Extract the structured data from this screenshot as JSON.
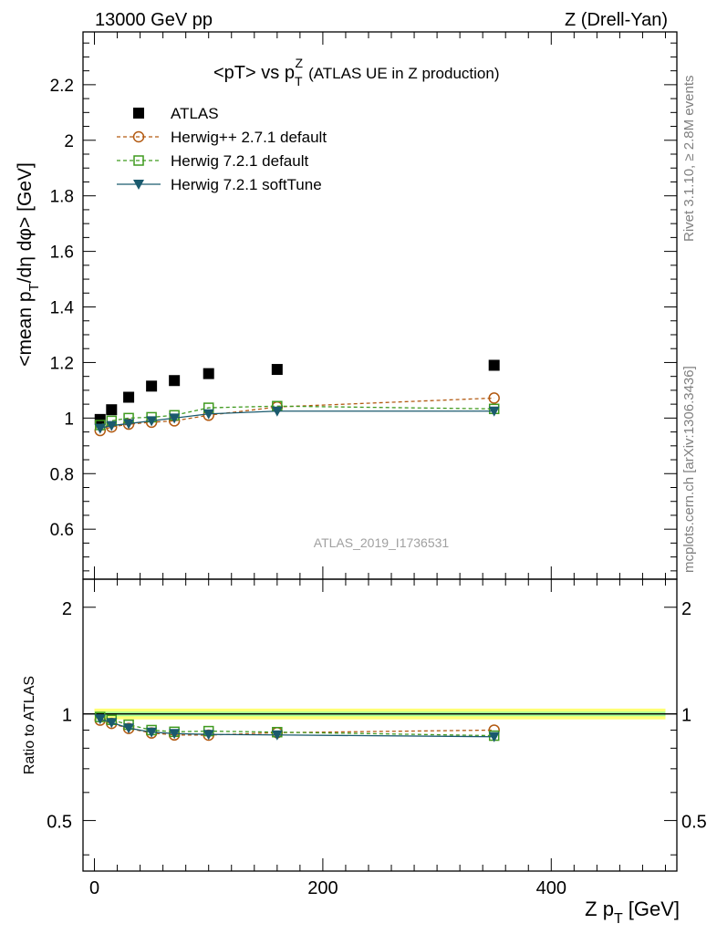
{
  "header": {
    "left": "13000 GeV pp",
    "right": "Z (Drell-Yan)"
  },
  "side_labels": {
    "rivet": "Rivet 3.1.10, ≥ 2.8M events",
    "mcplots": "mcplots.cern.ch [arXiv:1306.3436]"
  },
  "chart_data": [
    {
      "type": "scatter",
      "panel": "main",
      "title": "<pT> vs p_T^Z (ATLAS UE in Z production)",
      "title_parts": {
        "main": "<pT> vs p",
        "sup": "Z",
        "sub": "T",
        "tail": "(ATLAS UE in Z production)"
      },
      "ylabel": "<mean p_T/dη dφ> [GeV]",
      "ylabel_parts": {
        "a": "<mean p",
        "sub": "T",
        "b": "/dη dφ> [GeV]"
      },
      "xlabel": "",
      "xlim": [
        -10,
        510
      ],
      "ylim": [
        0.42,
        2.39
      ],
      "yticks": [
        0.6,
        0.8,
        1,
        1.2,
        1.4,
        1.6,
        1.8,
        2,
        2.2
      ],
      "ytick_labels": [
        "0.6",
        "0.8",
        "1",
        "1.2",
        "1.4",
        "1.6",
        "1.8",
        "2",
        "2.2"
      ],
      "watermark": "ATLAS_2019_I1736531",
      "legend_position": "top-left",
      "series": [
        {
          "name": "ATLAS",
          "color": "#000000",
          "marker": "filled-square",
          "line": "none",
          "x": [
            5,
            15,
            30,
            50,
            70,
            100,
            160,
            350
          ],
          "y": [
            0.995,
            1.03,
            1.075,
            1.115,
            1.135,
            1.16,
            1.175,
            1.19
          ]
        },
        {
          "name": "Herwig++ 2.7.1 default",
          "color": "#b35a12",
          "marker": "open-circle",
          "line": "dashed",
          "x": [
            5,
            15,
            30,
            50,
            70,
            100,
            160,
            350
          ],
          "y": [
            0.955,
            0.968,
            0.978,
            0.985,
            0.99,
            1.01,
            1.04,
            1.072
          ]
        },
        {
          "name": "Herwig 7.2.1 default",
          "color": "#3f9a1f",
          "marker": "open-square",
          "line": "dashed",
          "x": [
            5,
            15,
            30,
            50,
            70,
            100,
            160,
            350
          ],
          "y": [
            0.975,
            0.99,
            1.0,
            1.003,
            1.01,
            1.037,
            1.043,
            1.033
          ]
        },
        {
          "name": "Herwig 7.2.1 softTune",
          "color": "#1a5a6e",
          "marker": "filled-triangle-down",
          "line": "solid",
          "x": [
            5,
            15,
            30,
            50,
            70,
            100,
            160,
            350
          ],
          "y": [
            0.963,
            0.973,
            0.98,
            0.99,
            1.0,
            1.015,
            1.025,
            1.025
          ]
        }
      ]
    },
    {
      "type": "scatter",
      "panel": "ratio",
      "ylabel": "Ratio to ATLAS",
      "xlabel": "Z p_T [GeV]",
      "xlabel_parts": {
        "a": "Z p",
        "sub": "T",
        "b": "[GeV]"
      },
      "xlim": [
        -10,
        510
      ],
      "ylim": [
        0.36,
        2.4
      ],
      "log_y": true,
      "xticks": [
        0,
        200,
        400
      ],
      "xtick_labels": [
        "0",
        "200",
        "400"
      ],
      "yticks": [
        0.5,
        1,
        2
      ],
      "ytick_labels": [
        "0.5",
        "1",
        "2"
      ],
      "band_color": "#ffff66",
      "band_inner_color": "#99ff99",
      "reference_line_color": "#000000",
      "series": [
        {
          "name": "Herwig++ 2.7.1 default",
          "color": "#b35a12",
          "marker": "open-circle",
          "line": "dashed",
          "x": [
            5,
            15,
            30,
            50,
            70,
            100,
            160,
            350
          ],
          "y": [
            0.96,
            0.94,
            0.91,
            0.883,
            0.872,
            0.871,
            0.885,
            0.9
          ]
        },
        {
          "name": "Herwig 7.2.1 default",
          "color": "#3f9a1f",
          "marker": "open-square",
          "line": "dashed",
          "x": [
            5,
            15,
            30,
            50,
            70,
            100,
            160,
            350
          ],
          "y": [
            0.98,
            0.962,
            0.932,
            0.9,
            0.89,
            0.894,
            0.888,
            0.868
          ]
        },
        {
          "name": "Herwig 7.2.1 softTune",
          "color": "#1a5a6e",
          "marker": "filled-triangle-down",
          "line": "solid",
          "x": [
            5,
            15,
            30,
            50,
            70,
            100,
            160,
            350
          ],
          "y": [
            0.968,
            0.945,
            0.912,
            0.888,
            0.88,
            0.875,
            0.872,
            0.862
          ]
        }
      ]
    }
  ]
}
